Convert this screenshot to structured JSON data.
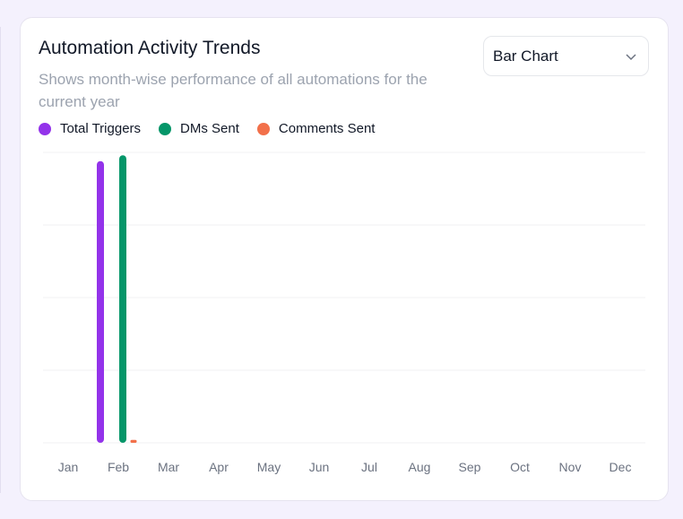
{
  "card": {
    "title": "Automation Activity Trends",
    "subtitle": "Shows month-wise performance of all automations for the current year",
    "chart_type_select": {
      "value": "Bar Chart",
      "icon": "chevron-down-icon"
    }
  },
  "colors": {
    "total_triggers": "#9333ea",
    "dms_sent": "#059669",
    "comments_sent": "#f2704a",
    "grid": "#f0f0f3",
    "background": "#f4f1fd"
  },
  "chart_data": {
    "type": "bar",
    "title": "Automation Activity Trends",
    "categories": [
      "Jan",
      "Feb",
      "Mar",
      "Apr",
      "May",
      "Jun",
      "Jul",
      "Aug",
      "Sep",
      "Oct",
      "Nov",
      "Dec"
    ],
    "series": [
      {
        "name": "Total Triggers",
        "color": "#9333ea",
        "values": [
          0,
          97,
          0,
          0,
          0,
          0,
          0,
          0,
          0,
          0,
          0,
          0
        ]
      },
      {
        "name": "DMs Sent",
        "color": "#059669",
        "values": [
          0,
          99,
          0,
          0,
          0,
          0,
          0,
          0,
          0,
          0,
          0,
          0
        ]
      },
      {
        "name": "Comments Sent",
        "color": "#f2704a",
        "values": [
          0,
          1,
          0,
          0,
          0,
          0,
          0,
          0,
          0,
          0,
          0,
          0
        ]
      }
    ],
    "ylim": [
      0,
      100
    ],
    "grid": true,
    "y_tick_labels_shown": false,
    "legend_placement": "top-left"
  }
}
